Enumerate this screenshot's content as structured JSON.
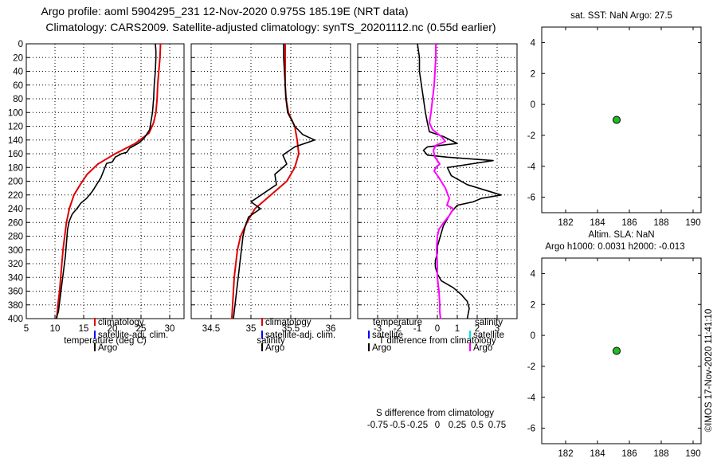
{
  "header": {
    "line1": "Argo profile: aoml 5904295_231 12-Nov-2020 0.975S 185.19E (NRT data)",
    "line2": "Climatology: CARS2009. Satellite-adjusted climatology: synTS_20201112.nc (0.55d earlier)"
  },
  "side_stamp": "©IMOS 17-Nov-2020 11:41:10",
  "colors": {
    "climatology": "#e00000",
    "satellite_clim": "#0000ff",
    "argo": "#000000",
    "salinity_diff": "#ff00ff",
    "salinity_sat": "#00e5e5",
    "marker": "#22bb22"
  },
  "chart_data": [
    {
      "type": "line",
      "id": "temperature",
      "xlabel": "temperature (deg C)",
      "xlim": [
        5,
        32.5
      ],
      "xticks": [
        "5",
        "10",
        "15",
        "20",
        "25",
        "30"
      ],
      "ylim": [
        0,
        400
      ],
      "yticks": [
        "0",
        "20",
        "40",
        "60",
        "80",
        "100",
        "120",
        "140",
        "160",
        "180",
        "200",
        "220",
        "240",
        "260",
        "280",
        "300",
        "320",
        "340",
        "360",
        "380",
        "400"
      ],
      "legend": [
        "climatology",
        "satellite-adj. clim.",
        "Argo"
      ],
      "series": [
        {
          "name": "climatology",
          "x": [
            28.4,
            28.3,
            28.1,
            27.9,
            27.8,
            27.6,
            27.2,
            26.4,
            24.0,
            20.5,
            17.5,
            15.6,
            14.4,
            13.3,
            12.5,
            12.0,
            11.7,
            11.4,
            11.2,
            11.0,
            10.8,
            10.5,
            10.3
          ],
          "y": [
            0,
            20,
            40,
            60,
            80,
            100,
            115,
            130,
            145,
            160,
            175,
            190,
            205,
            220,
            240,
            260,
            280,
            300,
            320,
            340,
            360,
            380,
            400
          ]
        },
        {
          "name": "Argo",
          "x": [
            27.5,
            27.6,
            27.6,
            27.5,
            27.3,
            27.2,
            27.0,
            26.5,
            25.5,
            24.5,
            23.0,
            22.5,
            21.6,
            20.5,
            20.0,
            19.0,
            18.0,
            16.5,
            15.5,
            14.5,
            14.0,
            13.0,
            12.5,
            12.2,
            12.0,
            11.8,
            11.5,
            11.2,
            10.9,
            10.6,
            10.2
          ],
          "y": [
            0,
            10,
            20,
            40,
            60,
            80,
            100,
            125,
            138,
            145,
            152,
            158,
            160,
            165,
            172,
            174,
            195,
            215,
            225,
            232,
            238,
            248,
            258,
            270,
            290,
            310,
            330,
            350,
            370,
            390,
            400
          ]
        }
      ]
    },
    {
      "type": "line",
      "id": "salinity",
      "xlabel": "salinity",
      "xlim": [
        34.25,
        36.25
      ],
      "xticks": [
        "34.5",
        "35",
        "35.5",
        "36"
      ],
      "ylim": [
        0,
        400
      ],
      "legend": [
        "climatology",
        "satellite-adj. clim.",
        "Argo"
      ],
      "series": [
        {
          "name": "climatology",
          "x": [
            35.43,
            35.43,
            35.43,
            35.43,
            35.44,
            35.47,
            35.55,
            35.58,
            35.6,
            35.55,
            35.45,
            35.25,
            35.05,
            34.95,
            34.87,
            34.83,
            34.81,
            34.79,
            34.78,
            34.77,
            34.76
          ],
          "y": [
            0,
            20,
            40,
            60,
            80,
            100,
            120,
            140,
            160,
            180,
            200,
            220,
            240,
            260,
            280,
            300,
            320,
            340,
            360,
            380,
            400
          ]
        },
        {
          "name": "Argo",
          "x": [
            35.41,
            35.41,
            35.42,
            35.43,
            35.44,
            35.46,
            35.55,
            35.65,
            35.8,
            35.55,
            35.4,
            35.45,
            35.3,
            35.32,
            35.0,
            35.12,
            34.97,
            34.93,
            34.9,
            34.88,
            34.86,
            34.84,
            34.82,
            34.8,
            34.79,
            34.78
          ],
          "y": [
            0,
            20,
            40,
            60,
            80,
            100,
            120,
            132,
            140,
            150,
            162,
            175,
            190,
            205,
            230,
            240,
            252,
            265,
            280,
            300,
            320,
            340,
            360,
            380,
            390,
            400
          ]
        }
      ]
    },
    {
      "type": "line",
      "id": "difference",
      "xlabel": "T difference from climatology",
      "xlabel_top": "S difference from climatology",
      "xlim": [
        -4,
        4
      ],
      "xticks": [
        "-3",
        "-2",
        "-1",
        "0",
        "1",
        "2",
        "3"
      ],
      "sticks": [
        "-0.75",
        "-0.5",
        "-0.25",
        "0",
        "0.25",
        "0.5",
        "0.75"
      ],
      "ylim": [
        0,
        400
      ],
      "legend_left_title": "temperature",
      "legend_right_title": "salinity",
      "legend_left": [
        "satellite",
        "Argo"
      ],
      "legend_right": [
        "satellite",
        "Argo"
      ],
      "series": [
        {
          "name": "T diff (Argo)",
          "x": [
            -1.0,
            -0.9,
            -0.9,
            -0.8,
            -0.7,
            -0.6,
            -0.5,
            -0.4,
            0.3,
            1.0,
            -0.5,
            -0.7,
            -0.5,
            0.5,
            2.8,
            1.0,
            0.5,
            0.7,
            1.5,
            3.2,
            2.2,
            1.8,
            1.0,
            0.7,
            0.5,
            0.3,
            0.2,
            0.1,
            0.0,
            0.0,
            -0.1,
            -0.1,
            0.0,
            0.2,
            0.8,
            1.2,
            1.5,
            1.6,
            1.5
          ],
          "y": [
            0,
            20,
            40,
            60,
            80,
            100,
            115,
            128,
            135,
            145,
            150,
            155,
            162,
            165,
            170,
            178,
            180,
            192,
            205,
            220,
            225,
            230,
            235,
            245,
            255,
            265,
            275,
            285,
            295,
            305,
            315,
            325,
            335,
            345,
            355,
            365,
            375,
            385,
            400
          ]
        },
        {
          "name": "S diff (Argo)",
          "x": [
            -0.02,
            -0.02,
            -0.03,
            -0.04,
            -0.06,
            -0.08,
            -0.1,
            -0.06,
            0.05,
            0.1,
            -0.02,
            -0.05,
            -0.03,
            0.03,
            -0.02,
            -0.04,
            0.02,
            0.1,
            0.15,
            0.12,
            0.2,
            0.15,
            0.08,
            0.02,
            0.0,
            -0.01,
            0.0,
            0.0,
            0.02,
            0.03,
            0.03,
            0.04
          ],
          "y": [
            0,
            20,
            40,
            60,
            80,
            100,
            115,
            125,
            135,
            142,
            148,
            155,
            165,
            175,
            180,
            185,
            195,
            210,
            225,
            235,
            240,
            250,
            260,
            270,
            280,
            300,
            320,
            340,
            360,
            380,
            390,
            400
          ]
        }
      ]
    },
    {
      "type": "scatter",
      "id": "sst",
      "title": "sat. SST: NaN Argo: 27.5",
      "xlim": [
        180.5,
        190.5
      ],
      "xticks": [
        "182",
        "184",
        "186",
        "188",
        "190"
      ],
      "ylim": [
        -7,
        5
      ],
      "yticks": [
        "4",
        "2",
        "0",
        "-2",
        "-4",
        "-6"
      ],
      "points": [
        {
          "x": 185.2,
          "y": -1.0
        }
      ]
    },
    {
      "type": "scatter",
      "id": "sla",
      "title": "Altim. SLA: NaN",
      "title2": "Argo h1000: 0.0031 h2000: -0.013",
      "xlim": [
        180.5,
        190.5
      ],
      "xticks": [
        "182",
        "184",
        "186",
        "188",
        "190"
      ],
      "ylim": [
        -7,
        5
      ],
      "yticks": [
        "4",
        "2",
        "0",
        "-2",
        "-4",
        "-6"
      ],
      "points": [
        {
          "x": 185.2,
          "y": -1.0
        }
      ]
    }
  ]
}
